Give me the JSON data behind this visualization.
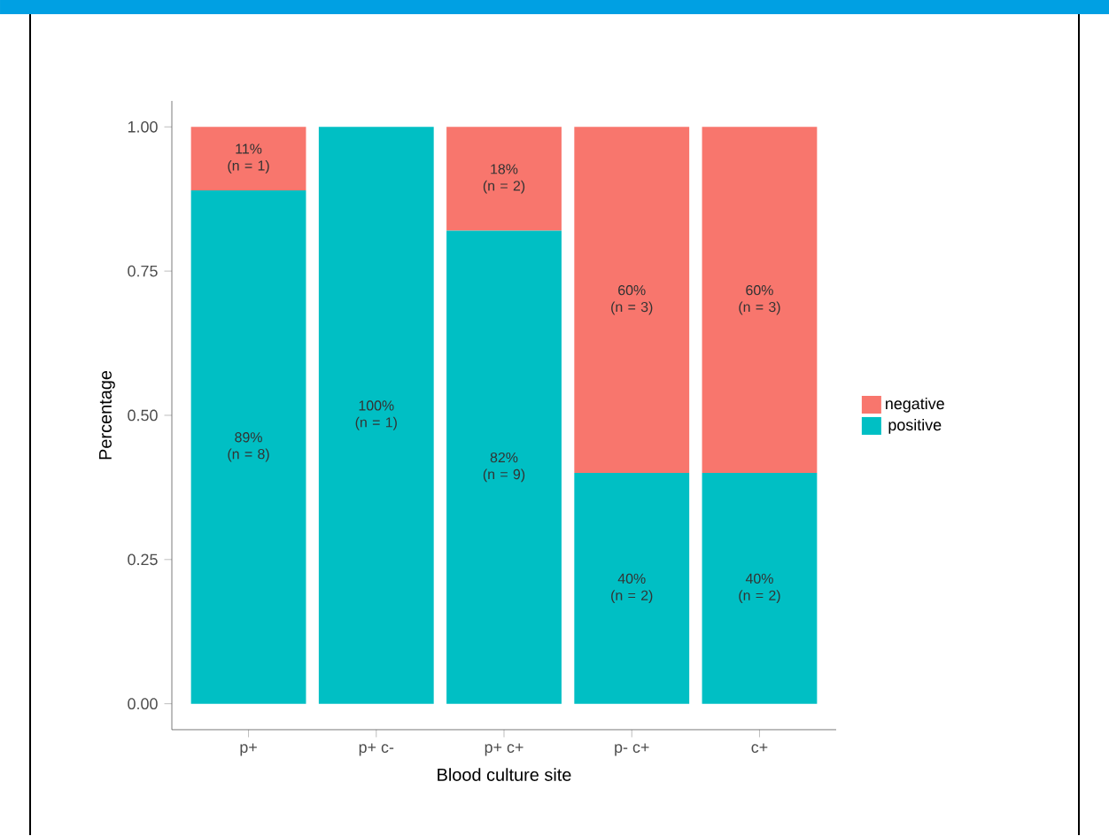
{
  "chart_data": {
    "type": "bar",
    "stacked": true,
    "xlabel": "Blood culture site",
    "ylabel": "Percentage",
    "categories": [
      "p+",
      "p+ c-",
      "p+ c+",
      "p- c+",
      "c+"
    ],
    "series": [
      {
        "name": "positive",
        "color": "#00bfc4",
        "values": [
          0.89,
          1.0,
          0.82,
          0.4,
          0.4
        ],
        "value_labels": [
          "89% (n = 8)",
          "100% (n = 1)",
          "82% (n = 9)",
          "40% (n = 2)",
          "40% (n = 2)"
        ]
      },
      {
        "name": "negative",
        "color": "#f8766d",
        "values": [
          0.11,
          0,
          0.18,
          0.6,
          0.6
        ],
        "value_labels": [
          "11% (n = 1)",
          null,
          "18% (n = 2)",
          "60% (n = 3)",
          "60% (n = 3)"
        ]
      }
    ],
    "ylim": [
      -0.045,
      1.045
    ],
    "yticks": [
      {
        "value": 0,
        "label": "0.00"
      },
      {
        "value": 0.25,
        "label": "0.25"
      },
      {
        "value": 0.5,
        "label": "0.50"
      },
      {
        "value": 0.75,
        "label": "0.75"
      },
      {
        "value": 1,
        "label": "1.00"
      }
    ],
    "legend": "right",
    "grid": false
  }
}
